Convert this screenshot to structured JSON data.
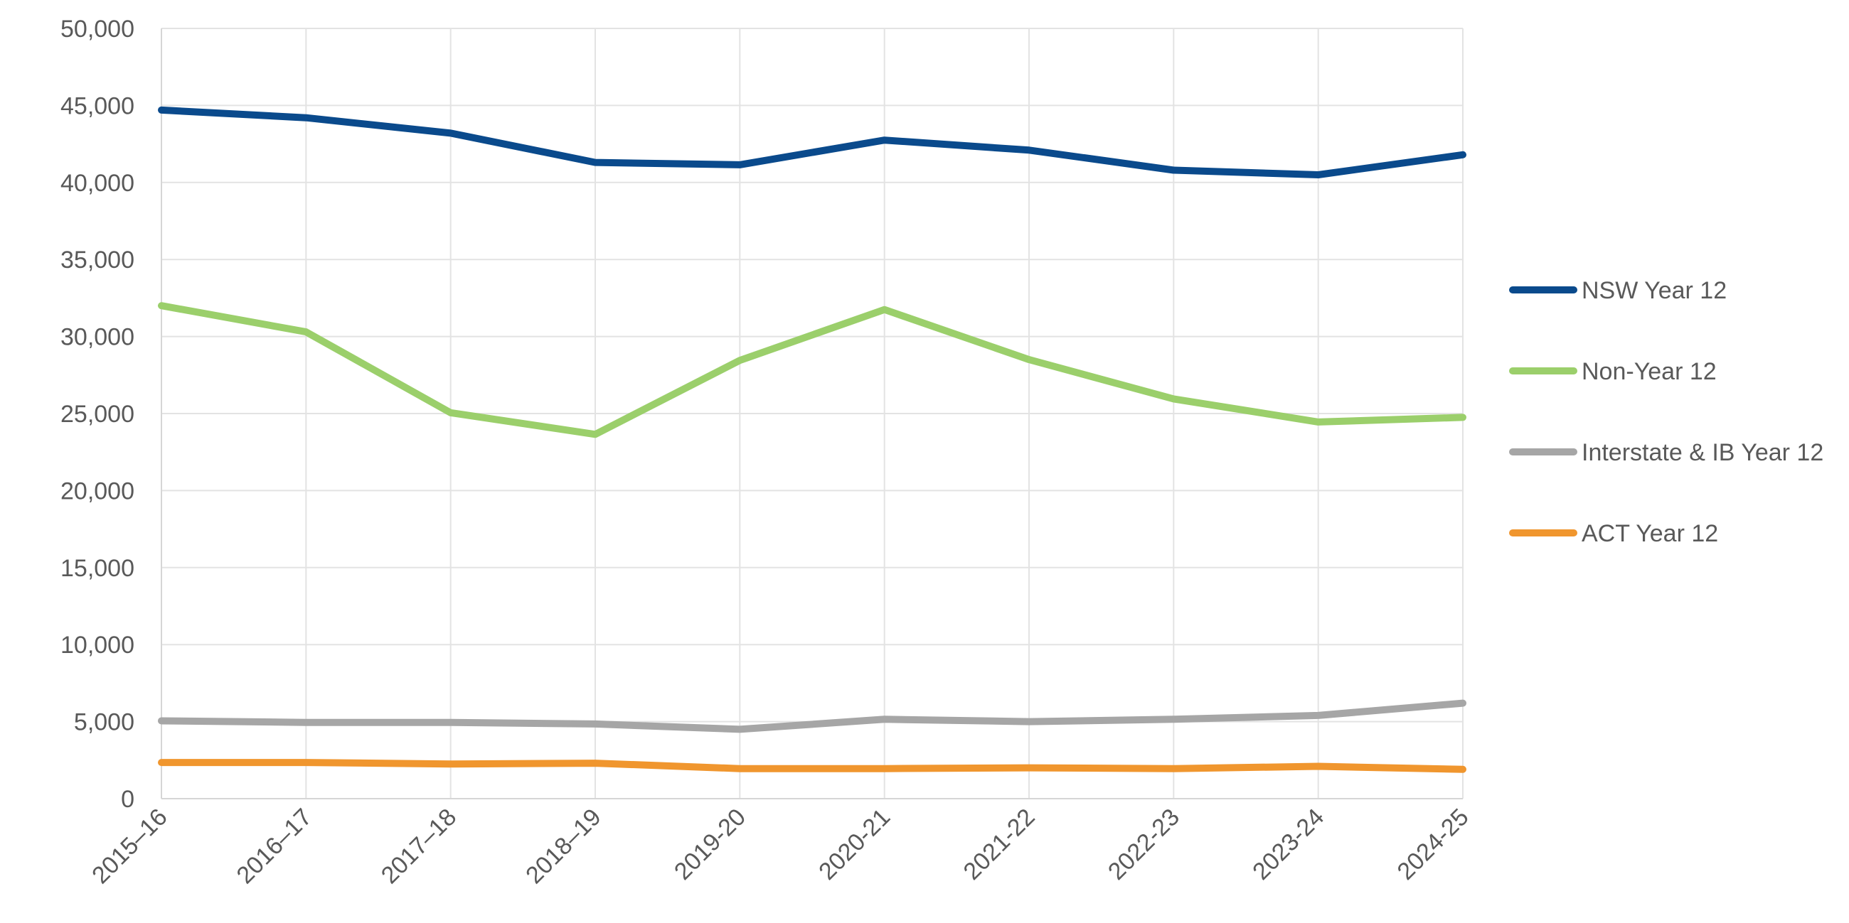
{
  "chart_data": {
    "type": "line",
    "categories": [
      "2015–16",
      "2016–17",
      "2017–18",
      "2018–19",
      "2019-20",
      "2020-21",
      "2021-22",
      "2022-23",
      "2023-24",
      "2024-25"
    ],
    "ylim": [
      0,
      50000
    ],
    "ytick_step": 5000,
    "ytick_labels": [
      "0",
      "5,000",
      "10,000",
      "15,000",
      "20,000",
      "25,000",
      "30,000",
      "35,000",
      "40,000",
      "45,000",
      "50,000"
    ],
    "grid": true,
    "legend_position": "right",
    "series": [
      {
        "name": "NSW Year 12",
        "color": "#0a4a8c",
        "values": [
          44700,
          44200,
          43200,
          41300,
          41150,
          42750,
          42100,
          40800,
          40500,
          41800
        ]
      },
      {
        "name": "Non-Year 12",
        "color": "#9bcf6b",
        "values": [
          32000,
          30300,
          25050,
          23650,
          28450,
          31750,
          28500,
          25950,
          24450,
          24750
        ]
      },
      {
        "name": "Interstate & IB Year 12",
        "color": "#a6a6a6",
        "values": [
          5050,
          4950,
          4950,
          4850,
          4500,
          5150,
          5000,
          5150,
          5400,
          6200
        ]
      },
      {
        "name": "ACT Year 12",
        "color": "#f0962e",
        "values": [
          2350,
          2350,
          2250,
          2300,
          1950,
          1950,
          2000,
          1950,
          2100,
          1900
        ]
      }
    ]
  }
}
